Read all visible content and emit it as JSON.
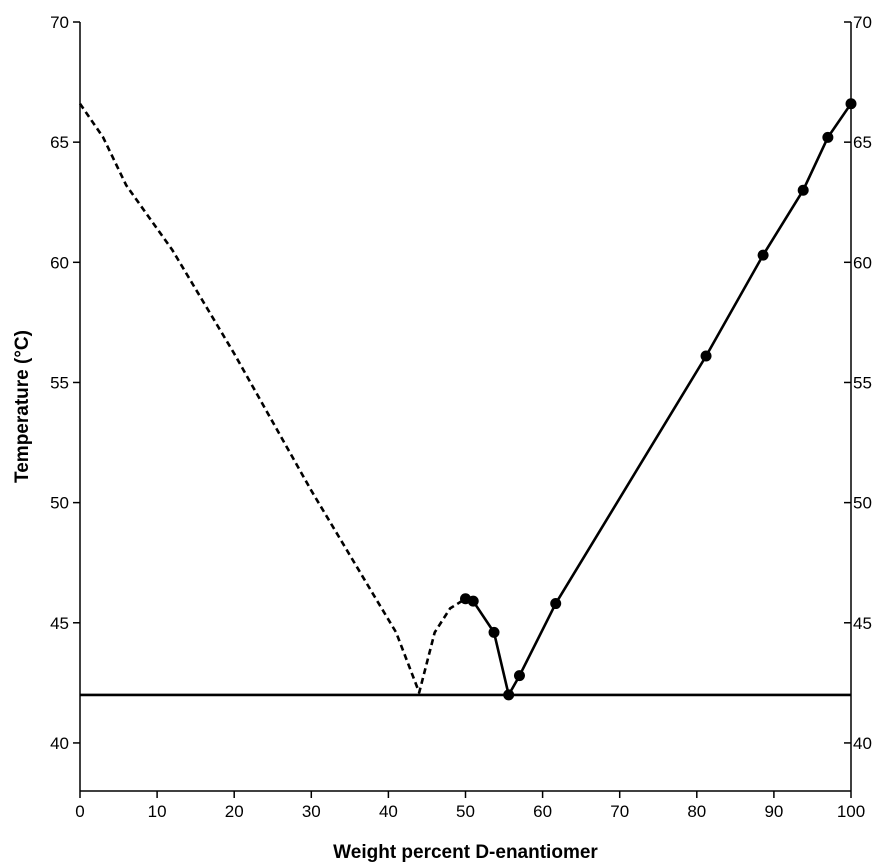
{
  "chart_data": {
    "type": "line",
    "xlabel": "Weight percent D-enantiomer",
    "ylabel": "Temperature (°C)",
    "xlim": [
      0,
      100
    ],
    "ylim": [
      38,
      70
    ],
    "x_ticks": [
      0,
      10,
      20,
      30,
      40,
      50,
      60,
      70,
      80,
      90,
      100
    ],
    "y_ticks": [
      40,
      45,
      50,
      55,
      60,
      65,
      70
    ],
    "right_axis_ticks": [
      40,
      45,
      50,
      55,
      60,
      65,
      70
    ],
    "grid": false,
    "legend": "none",
    "series": [
      {
        "style": "dashed",
        "markers": false,
        "points": [
          [
            0,
            66.6
          ],
          [
            3,
            65.2
          ],
          [
            6,
            63.2
          ],
          [
            12,
            60.5
          ],
          [
            20,
            56.2
          ],
          [
            30,
            50.5
          ],
          [
            38,
            46.2
          ],
          [
            41,
            44.6
          ],
          [
            44,
            42.1
          ],
          [
            46,
            44.6
          ],
          [
            48,
            45.6
          ],
          [
            50,
            46
          ]
        ]
      },
      {
        "style": "solid",
        "markers": true,
        "points": [
          [
            50,
            46
          ],
          [
            51,
            45.9
          ],
          [
            53.7,
            44.6
          ],
          [
            55.6,
            42
          ],
          [
            57,
            42.8
          ],
          [
            61.7,
            45.8
          ],
          [
            81.2,
            56.1
          ],
          [
            88.6,
            60.3
          ],
          [
            93.8,
            63
          ],
          [
            97,
            65.2
          ],
          [
            100,
            66.6
          ]
        ]
      },
      {
        "style": "solid",
        "markers": false,
        "points": [
          [
            0,
            42
          ],
          [
            100,
            42
          ]
        ]
      }
    ]
  }
}
